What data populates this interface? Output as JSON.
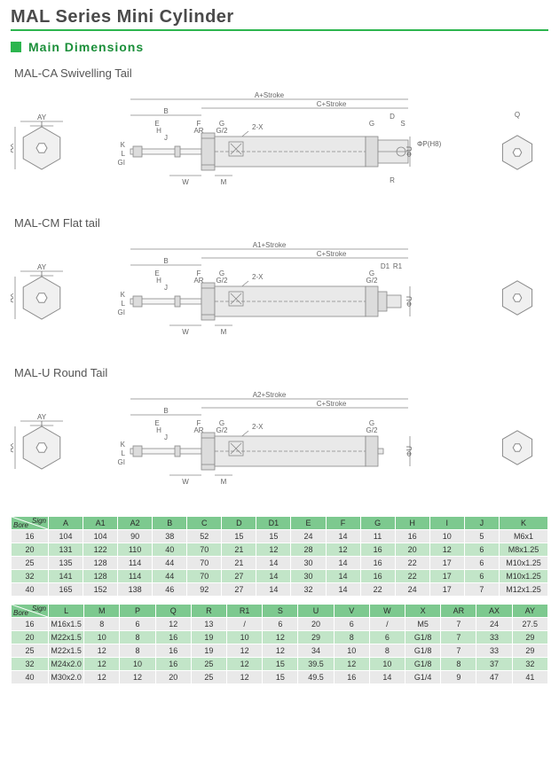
{
  "page_title": "MAL  Series Mini  Cylinder",
  "section_title": "Main  Dimensions",
  "accent_color": "#2cb54e",
  "header_bg": "#7dc98f",
  "row_alt_bg": "#c2e5c8",
  "row_bg": "#e9e9e9",
  "text_color": "#333333",
  "variants": [
    {
      "label": "MAL-CA  Swivelling Tail",
      "top1": "A+Stroke",
      "top2": "C+Stroke",
      "b": "B",
      "tail_labels": [
        "G",
        "D",
        "S"
      ],
      "extra": "ΦP(H8)",
      "r": "R",
      "q": "Q"
    },
    {
      "label": "MAL-CM   Flat tail",
      "top1": "A1+Stroke",
      "top2": "C+Stroke",
      "b": "B",
      "tail_labels": [
        "G",
        "D1",
        "G/2",
        "R1"
      ],
      "extra": "",
      "r": "",
      "q": ""
    },
    {
      "label": "MAL-U  Round Tail",
      "top1": "A2+Stroke",
      "top2": "C+Stroke",
      "b": "B",
      "tail_labels": [
        "G",
        "G/2"
      ],
      "extra": "",
      "r": "",
      "q": ""
    }
  ],
  "common_labels": {
    "AY": "AY",
    "I": "I",
    "AX": "AX",
    "E": "E",
    "H": "H",
    "J": "J",
    "F": "F",
    "AR": "AR",
    "G": "G",
    "G2": "G/2",
    "twoX": "2-X",
    "K": "K",
    "L": "L",
    "GI": "GI",
    "W": "W",
    "M": "M",
    "phiU": "ΦU"
  },
  "table1": {
    "corner_top": "Sign",
    "corner_bottom": "Bore",
    "columns": [
      "A",
      "A1",
      "A2",
      "B",
      "C",
      "D",
      "D1",
      "E",
      "F",
      "G",
      "H",
      "I",
      "J",
      "K"
    ],
    "rows": [
      {
        "bore": "16",
        "cells": [
          "104",
          "104",
          "90",
          "38",
          "52",
          "15",
          "15",
          "24",
          "14",
          "11",
          "16",
          "10",
          "5",
          "M6x1"
        ]
      },
      {
        "bore": "20",
        "cells": [
          "131",
          "122",
          "110",
          "40",
          "70",
          "21",
          "12",
          "28",
          "12",
          "16",
          "20",
          "12",
          "6",
          "M8x1.25"
        ]
      },
      {
        "bore": "25",
        "cells": [
          "135",
          "128",
          "114",
          "44",
          "70",
          "21",
          "14",
          "30",
          "14",
          "16",
          "22",
          "17",
          "6",
          "M10x1.25"
        ]
      },
      {
        "bore": "32",
        "cells": [
          "141",
          "128",
          "114",
          "44",
          "70",
          "27",
          "14",
          "30",
          "14",
          "16",
          "22",
          "17",
          "6",
          "M10x1.25"
        ]
      },
      {
        "bore": "40",
        "cells": [
          "165",
          "152",
          "138",
          "46",
          "92",
          "27",
          "14",
          "32",
          "14",
          "22",
          "24",
          "17",
          "7",
          "M12x1.25"
        ]
      }
    ]
  },
  "table2": {
    "corner_top": "Sign",
    "corner_bottom": "Bore",
    "columns": [
      "L",
      "M",
      "P",
      "Q",
      "R",
      "R1",
      "S",
      "U",
      "V",
      "W",
      "X",
      "AR",
      "AX",
      "AY"
    ],
    "rows": [
      {
        "bore": "16",
        "cells": [
          "M16x1.5",
          "8",
          "6",
          "12",
          "13",
          "/",
          "6",
          "20",
          "6",
          "/",
          "M5",
          "7",
          "24",
          "27.5"
        ]
      },
      {
        "bore": "20",
        "cells": [
          "M22x1.5",
          "10",
          "8",
          "16",
          "19",
          "10",
          "12",
          "29",
          "8",
          "6",
          "G1/8",
          "7",
          "33",
          "29"
        ]
      },
      {
        "bore": "25",
        "cells": [
          "M22x1.5",
          "12",
          "8",
          "16",
          "19",
          "12",
          "12",
          "34",
          "10",
          "8",
          "G1/8",
          "7",
          "33",
          "29"
        ]
      },
      {
        "bore": "32",
        "cells": [
          "M24x2.0",
          "12",
          "10",
          "16",
          "25",
          "12",
          "15",
          "39.5",
          "12",
          "10",
          "G1/8",
          "8",
          "37",
          "32"
        ]
      },
      {
        "bore": "40",
        "cells": [
          "M30x2.0",
          "12",
          "12",
          "20",
          "25",
          "12",
          "15",
          "49.5",
          "16",
          "14",
          "G1/4",
          "9",
          "47",
          "41"
        ]
      }
    ]
  }
}
